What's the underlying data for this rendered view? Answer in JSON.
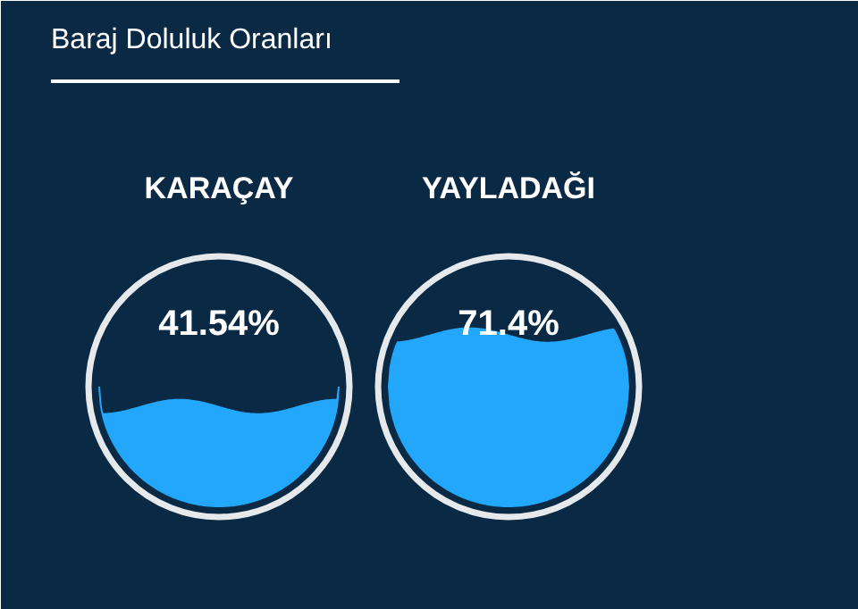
{
  "chart_data": {
    "type": "other",
    "title": "Baraj Doluluk Oranları",
    "categories": [
      "KARAÇAY",
      "YAYLADAĞI"
    ],
    "values": [
      41.54,
      71.4
    ],
    "value_labels": [
      "41.54%",
      "71.4%"
    ],
    "colors": [
      "#22a7fb",
      "#22a7fb"
    ]
  }
}
